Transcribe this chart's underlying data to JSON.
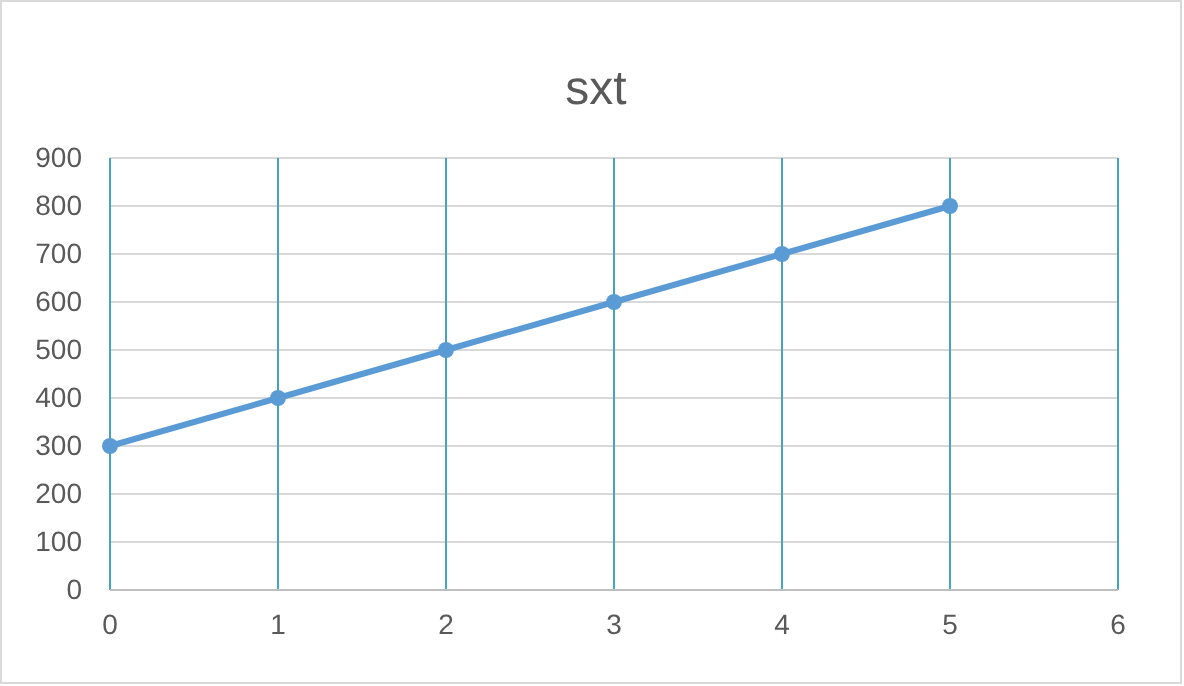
{
  "chart_data": {
    "type": "line",
    "title": "sxt",
    "x": [
      0,
      1,
      2,
      3,
      4,
      5
    ],
    "series": [
      {
        "color": "#5b9bd5",
        "values": [
          300,
          400,
          500,
          600,
          700,
          800
        ]
      }
    ],
    "xlim": [
      0,
      6
    ],
    "xticks": [
      0,
      1,
      2,
      3,
      4,
      5,
      6
    ],
    "ylim": [
      0,
      900
    ],
    "yticks": [
      0,
      100,
      200,
      300,
      400,
      500,
      600,
      700,
      800,
      900
    ],
    "grid": true,
    "marker": "circle",
    "line_style": "solid"
  }
}
